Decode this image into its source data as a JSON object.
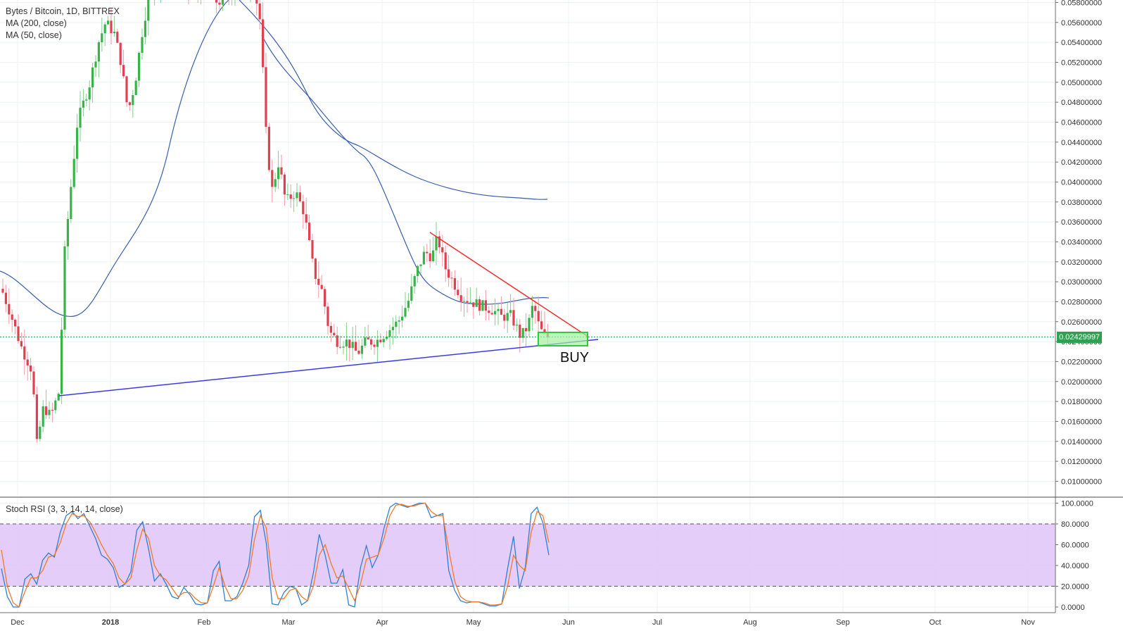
{
  "chart_data": [
    {
      "type": "candlestick",
      "title": "Bytes / Bitcoin, 1D, BITTREX",
      "indicators": [
        "MA (200, close)",
        "MA (50, close)"
      ],
      "ylim": [
        0.0094,
        0.0586
      ],
      "y_ticks": [
        "0.05800000",
        "0.05600000",
        "0.05400000",
        "0.05200000",
        "0.05000000",
        "0.04800000",
        "0.04600000",
        "0.04400000",
        "0.04200000",
        "0.04000000",
        "0.03800000",
        "0.03600000",
        "0.03400000",
        "0.03200000",
        "0.03000000",
        "0.02800000",
        "0.02600000",
        "0.02400000",
        "0.02200000",
        "0.02000000",
        "0.01800000",
        "0.01600000",
        "0.01400000",
        "0.01200000",
        "0.01000000"
      ],
      "last_price": "0.02429997",
      "x_ticks": [
        "Dec",
        "2018",
        "Feb",
        "Mar",
        "Apr",
        "May",
        "Jun",
        "Jul",
        "Aug",
        "Sep",
        "Oct",
        "Nov"
      ],
      "annotation": "BUY",
      "ohlc_approx_key_points": [
        {
          "date": "Dec",
          "close": 0.0293
        },
        {
          "date": "Dec mid",
          "close": 0.0125
        },
        {
          "date": "2018",
          "close": 0.056
        },
        {
          "date": "Feb",
          "close": 0.058
        },
        {
          "date": "Mar",
          "close": 0.04
        },
        {
          "date": "late Mar",
          "close": 0.023
        },
        {
          "date": "mid Apr",
          "close": 0.0345
        },
        {
          "date": "May",
          "close": 0.0275
        },
        {
          "date": "late May",
          "close": 0.0243
        }
      ],
      "ma50_key_points": [
        {
          "date": "Dec",
          "value": 0.031
        },
        {
          "date": "Dec mid",
          "value": 0.0265
        },
        {
          "date": "Feb",
          "value": 0.057
        },
        {
          "date": "Mar",
          "value": 0.052
        },
        {
          "date": "Apr",
          "value": 0.03
        },
        {
          "date": "late May",
          "value": 0.0282
        }
      ],
      "ma200_key_points": [
        {
          "date": "Feb",
          "value": 0.062
        },
        {
          "date": "Mar",
          "value": 0.052
        },
        {
          "date": "Apr",
          "value": 0.042
        },
        {
          "date": "May",
          "value": 0.039
        },
        {
          "date": "late May",
          "value": 0.0381
        }
      ]
    },
    {
      "type": "line",
      "title": "Stoch RSI (3, 3, 14, 14, close)",
      "ylim": [
        -3,
        103
      ],
      "y_ticks": [
        "100.0000",
        "80.0000",
        "60.0000",
        "40.0000",
        "20.0000",
        "0.0000"
      ],
      "band": [
        20,
        80
      ],
      "series": [
        {
          "color": "#2f7fd6",
          "values": [
            37,
            10,
            0,
            0,
            27,
            32,
            22,
            45,
            52,
            48,
            72,
            88,
            92,
            85,
            90,
            78,
            66,
            50,
            46,
            38,
            19,
            22,
            34,
            74,
            82,
            56,
            25,
            32,
            22,
            10,
            8,
            19,
            12,
            3,
            2,
            4,
            35,
            44,
            6,
            6,
            10,
            23,
            40,
            87,
            93,
            61,
            3,
            2,
            14,
            20,
            18,
            2,
            6,
            33,
            70,
            50,
            23,
            23,
            36,
            2,
            0,
            38,
            59,
            38,
            50,
            76,
            96,
            100,
            98,
            96,
            98,
            100,
            100,
            86,
            88,
            90,
            35,
            16,
            6,
            4,
            5,
            5,
            3,
            1,
            1,
            3,
            37,
            68,
            18,
            38,
            90,
            96,
            81,
            50
          ]
        },
        {
          "color": "#f07b2a",
          "values": [
            55,
            20,
            4,
            0,
            15,
            28,
            28,
            35,
            48,
            50,
            62,
            80,
            90,
            87,
            88,
            82,
            72,
            60,
            50,
            42,
            28,
            22,
            28,
            55,
            75,
            66,
            40,
            30,
            26,
            18,
            10,
            14,
            14,
            8,
            4,
            4,
            20,
            38,
            20,
            8,
            8,
            16,
            30,
            65,
            88,
            76,
            28,
            8,
            8,
            16,
            18,
            10,
            6,
            20,
            50,
            60,
            42,
            28,
            30,
            18,
            6,
            22,
            46,
            48,
            50,
            66,
            88,
            98,
            99,
            97,
            97,
            99,
            100,
            92,
            88,
            88,
            55,
            25,
            10,
            6,
            5,
            5,
            4,
            2,
            2,
            3,
            20,
            50,
            40,
            35,
            72,
            92,
            88,
            62
          ]
        }
      ]
    }
  ]
}
